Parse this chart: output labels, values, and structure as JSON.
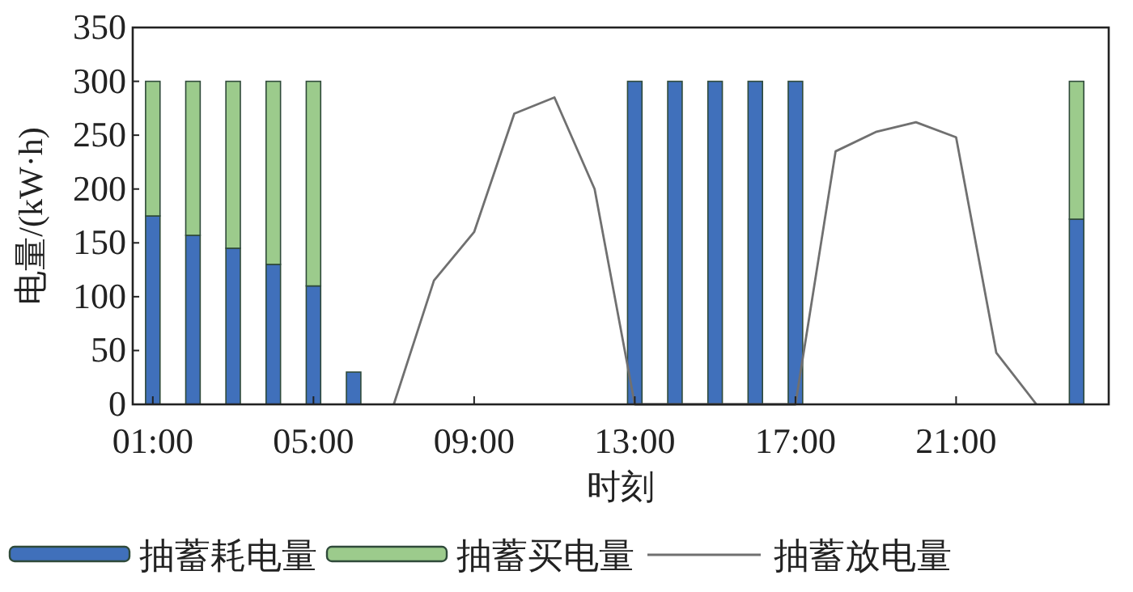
{
  "chart_data": {
    "type": "bar",
    "stacked": true,
    "x": [
      1,
      2,
      3,
      4,
      5,
      6,
      13,
      14,
      15,
      16,
      17,
      24
    ],
    "xlim": [
      0.5,
      24.8
    ],
    "xticks": [
      {
        "value": 1,
        "label": "01:00"
      },
      {
        "value": 5,
        "label": "05:00"
      },
      {
        "value": 9,
        "label": "09:00"
      },
      {
        "value": 13,
        "label": "13:00"
      },
      {
        "value": 17,
        "label": "17:00"
      },
      {
        "value": 21,
        "label": "21:00"
      }
    ],
    "ylim": [
      0,
      350
    ],
    "yticks": [
      0,
      50,
      100,
      150,
      200,
      250,
      300,
      350
    ],
    "xlabel": "时刻",
    "ylabel": "电量/(kW·h)",
    "legend": "bottom",
    "series": [
      {
        "name": "抽蓄耗电量",
        "color": "#4070bb",
        "values": [
          175,
          157,
          145,
          130,
          110,
          30,
          300,
          300,
          300,
          300,
          300,
          172
        ]
      },
      {
        "name": "抽蓄买电量",
        "color": "#9ccb8c",
        "values": [
          125,
          143,
          155,
          170,
          190,
          null,
          null,
          null,
          null,
          null,
          null,
          128
        ]
      },
      {
        "name": "抽蓄放电量",
        "type": "line",
        "color": "#707070",
        "x": [
          7,
          8,
          9,
          10,
          11,
          12,
          13,
          14,
          15,
          16,
          17,
          18,
          19,
          20,
          21,
          22,
          23
        ],
        "values": [
          0,
          115,
          160,
          270,
          285,
          200,
          0,
          0,
          0,
          0,
          0,
          235,
          253,
          262,
          248,
          48,
          0
        ]
      }
    ]
  }
}
